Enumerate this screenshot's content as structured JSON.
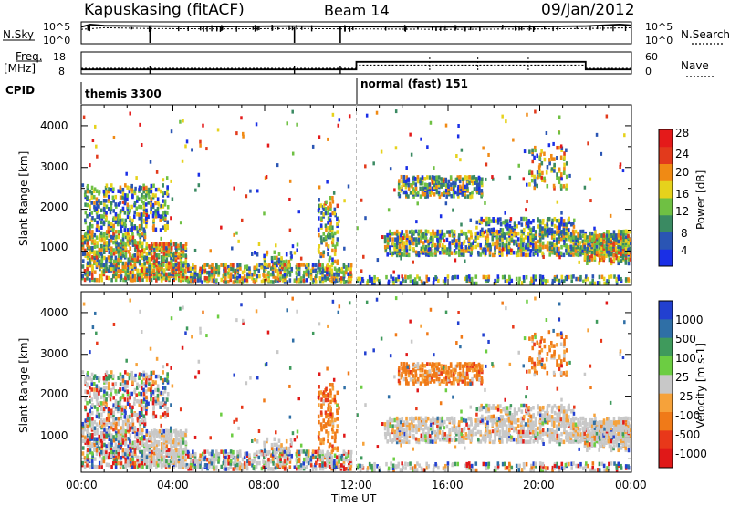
{
  "header": {
    "station": "Kapuskasing (fitACF)",
    "beam": "Beam 14",
    "date": "09/Jan/2012"
  },
  "noise_panel": {
    "left_label": "N.Sky",
    "right_label": "N.Search",
    "ticks_left": [
      "10^5",
      "10^0"
    ],
    "ticks_right": [
      "10^5",
      "10^0"
    ]
  },
  "freq_panel": {
    "left_label_1": "Freq.",
    "left_label_2": "[MHz]",
    "right_label": "Nave",
    "ticks_left": [
      "18",
      "8"
    ],
    "ticks_right": [
      "60",
      "0"
    ]
  },
  "cpid": {
    "label": "CPID",
    "segments": [
      {
        "name": "themis 3300",
        "start_hour": 0,
        "end_hour": 12
      },
      {
        "name": "normal (fast) 151",
        "start_hour": 12,
        "end_hour": 24
      }
    ]
  },
  "axes": {
    "ylabel": "Slant Range [km]",
    "xlabel": "Time UT",
    "y_ticks": [
      "1000",
      "2000",
      "3000",
      "4000"
    ],
    "x_ticks": [
      "00:00",
      "04:00",
      "08:00",
      "12:00",
      "16:00",
      "20:00",
      "00:00"
    ]
  },
  "power_scale": {
    "label": "Power [dB]",
    "ticks": [
      "4",
      "8",
      "12",
      "16",
      "20",
      "24",
      "28"
    ],
    "colors": [
      "#1a2fe6",
      "#2a55b4",
      "#3a8a62",
      "#6fc043",
      "#e6d21c",
      "#f08a14",
      "#e23a1c",
      "#e41a1a"
    ]
  },
  "velocity_scale": {
    "label": "Velocity [m s-1]",
    "ticks": [
      "1000",
      "500",
      "100",
      "25",
      "-25",
      "-100",
      "-500",
      "-1000"
    ],
    "colors": [
      "#2240d0",
      "#2f6fa6",
      "#3f9a5c",
      "#6ccd42",
      "#c8c8c8",
      "#f6a23a",
      "#f07a18",
      "#e8381a",
      "#e01818"
    ]
  },
  "chart_data": {
    "type": "heatmap",
    "x_range_hours": [
      0,
      24
    ],
    "y_range_km": [
      180,
      4500
    ],
    "power_db_range": [
      0,
      30
    ],
    "velocity_range_ms": [
      -1000,
      1000
    ],
    "noise_sky_log10": [
      [
        0,
        4.2
      ],
      [
        0.4,
        4.8
      ],
      [
        1,
        4.5
      ],
      [
        3,
        4.4
      ],
      [
        6,
        4.3
      ],
      [
        9,
        4.4
      ],
      [
        12,
        4.3
      ],
      [
        16,
        4.2
      ],
      [
        20,
        4.3
      ],
      [
        22,
        4.4
      ],
      [
        23.5,
        4.8
      ],
      [
        24,
        4.6
      ]
    ],
    "noise_search_log10": [
      [
        0,
        3.6
      ],
      [
        1,
        4.0
      ],
      [
        3,
        3.8
      ],
      [
        6,
        3.7
      ],
      [
        9,
        3.8
      ],
      [
        12,
        3.7
      ],
      [
        16,
        3.6
      ],
      [
        20,
        3.7
      ],
      [
        22,
        3.8
      ],
      [
        24,
        4.0
      ]
    ],
    "frequency_mhz": [
      [
        0,
        10
      ],
      [
        12,
        10
      ],
      [
        12,
        13.5
      ],
      [
        22,
        13.5
      ],
      [
        22,
        10
      ],
      [
        24,
        10
      ]
    ],
    "nave": [
      [
        0,
        15
      ],
      [
        12,
        15
      ],
      [
        12,
        24
      ],
      [
        22,
        24
      ],
      [
        22,
        15
      ],
      [
        24,
        15
      ]
    ]
  }
}
